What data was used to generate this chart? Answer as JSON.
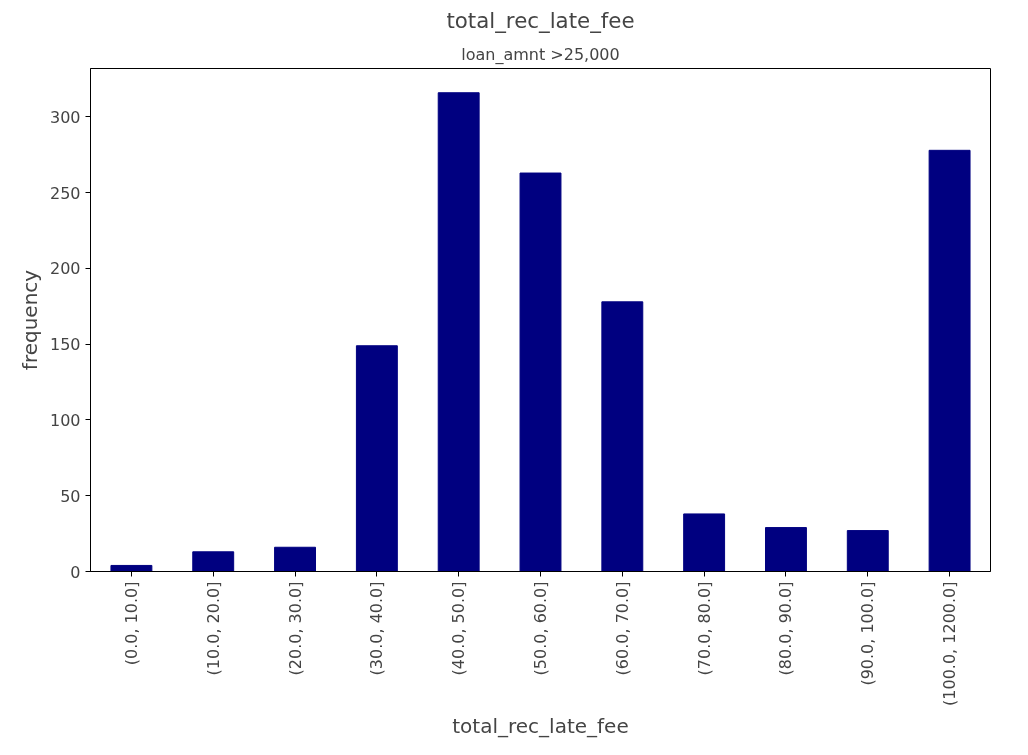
{
  "chart_data": {
    "type": "bar",
    "title": "total_rec_late_fee",
    "subtitle": "loan_amnt >25,000",
    "xlabel": "total_rec_late_fee",
    "ylabel": "frequency",
    "categories": [
      "(0.0, 10.0]",
      "(10.0, 20.0]",
      "(20.0, 30.0]",
      "(30.0, 40.0]",
      "(40.0, 50.0]",
      "(50.0, 60.0]",
      "(60.0, 70.0]",
      "(70.0, 80.0]",
      "(80.0, 90.0]",
      "(90.0, 100.0]",
      "(100.0, 1200.0]"
    ],
    "values": [
      4,
      13,
      16,
      149,
      316,
      263,
      178,
      38,
      29,
      27,
      278
    ],
    "color": "#000080",
    "ylim": [
      0,
      332
    ],
    "yticks": [
      0,
      50,
      100,
      150,
      200,
      250,
      300
    ],
    "grid": false
  }
}
